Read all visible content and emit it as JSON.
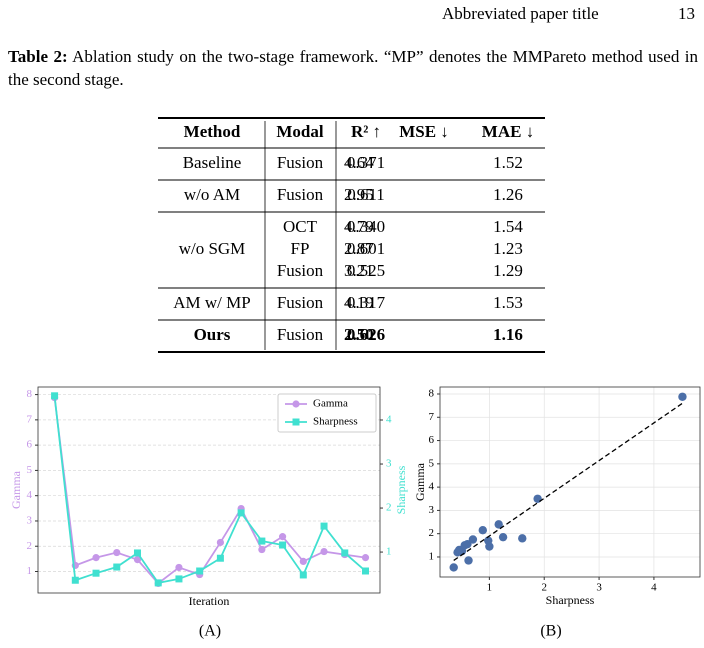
{
  "header": {
    "title": "Abbreviated paper title",
    "page": "13"
  },
  "caption": {
    "label": "Table 2:",
    "text": "Ablation study on the two-stage framework. “MP” denotes the MMPareto method used in the second stage."
  },
  "table": {
    "columns": [
      "Method",
      "Modal",
      "R² ↑",
      "MSE ↓",
      "MAE ↓"
    ],
    "groups": [
      {
        "method": "Baseline",
        "rows": [
          [
            "Fusion",
            "0.371",
            "4.64",
            "1.52"
          ]
        ]
      },
      {
        "method": "w/o AM",
        "rows": [
          [
            "Fusion",
            "0.611",
            "2.95",
            "1.26"
          ]
        ]
      },
      {
        "method": "w/o SGM",
        "rows": [
          [
            "OCT",
            "0.340",
            "4.79",
            "1.54"
          ],
          [
            "FP",
            "0.601",
            "2.87",
            "1.23"
          ],
          [
            "Fusion",
            "0.525",
            "3.21",
            "1.29"
          ]
        ]
      },
      {
        "method": "AM w/ MP",
        "rows": [
          [
            "Fusion",
            "0.317",
            "4.19",
            "1.53"
          ]
        ]
      },
      {
        "method": "Ours",
        "bold": true,
        "rows": [
          [
            "Fusion",
            "0.626",
            "2.50",
            "1.16"
          ]
        ]
      }
    ]
  },
  "chart_data": [
    {
      "type": "line",
      "caption": "(A)",
      "xlabel": "Iteration",
      "ylabel": "Gamma",
      "y2label": "Sharpness",
      "x": [
        0,
        1,
        2,
        3,
        4,
        5,
        6,
        7,
        8,
        9,
        10,
        11,
        12,
        13,
        14,
        15
      ],
      "xlim": [
        -0.8,
        15.7
      ],
      "ylim": [
        0.15,
        8.3
      ],
      "yticks": [
        1,
        2,
        3,
        4,
        5,
        6,
        7,
        8
      ],
      "y2lim": [
        0.07,
        4.75
      ],
      "y2ticks": [
        1,
        2,
        3,
        4
      ],
      "grid": true,
      "legend": "upper right",
      "series": [
        {
          "name": "Gamma",
          "color": "#c597e8",
          "marker": "circle",
          "values": [
            7.88,
            1.24,
            1.55,
            1.75,
            1.47,
            0.53,
            1.16,
            0.88,
            2.15,
            3.49,
            1.87,
            2.38,
            1.4,
            1.79,
            1.67,
            1.55
          ]
        },
        {
          "name": "Sharpness",
          "color": "#40e0d0",
          "marker": "square",
          "axis": "y2",
          "values": [
            4.55,
            0.36,
            0.52,
            0.66,
            0.98,
            0.3,
            0.39,
            0.57,
            0.86,
            1.89,
            1.25,
            1.16,
            0.48,
            1.59,
            0.98,
            0.57
          ]
        }
      ]
    },
    {
      "type": "scatter",
      "caption": "(B)",
      "xlabel": "Sharpness",
      "ylabel": "Gamma",
      "xlim": [
        0.1,
        4.84
      ],
      "xticks": [
        1,
        2,
        3,
        4
      ],
      "ylim": [
        0.14,
        8.3
      ],
      "yticks": [
        1,
        2,
        3,
        4,
        5,
        6,
        7,
        8
      ],
      "grid": true,
      "color": "#4c6fa8",
      "x": [
        0.35,
        0.42,
        0.45,
        0.5,
        0.55,
        0.6,
        0.62,
        0.7,
        0.88,
        0.98,
        1.0,
        1.17,
        1.25,
        1.6,
        1.88,
        4.52
      ],
      "y": [
        0.55,
        1.2,
        1.3,
        1.25,
        1.5,
        1.55,
        0.85,
        1.75,
        2.15,
        1.7,
        1.45,
        2.4,
        1.85,
        1.8,
        3.5,
        7.88
      ],
      "trendline": {
        "x": [
          0.35,
          4.52
        ],
        "y": [
          0.85,
          7.6
        ],
        "color": "#000000"
      }
    }
  ]
}
